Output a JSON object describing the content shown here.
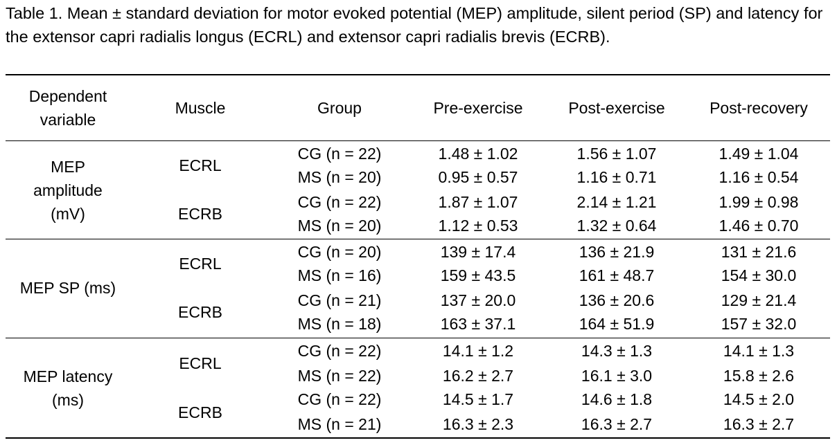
{
  "caption": "Table 1. Mean ± standard deviation for motor evoked potential (MEP) amplitude, silent period (SP) and latency for the extensor capri radialis longus (ECRL) and extensor capri radialis brevis (ECRB).",
  "headers": {
    "dependent_line1": "Dependent",
    "dependent_line2": "variable",
    "muscle": "Muscle",
    "group": "Group",
    "pre": "Pre-exercise",
    "post": "Post-exercise",
    "recovery": "Post-recovery"
  },
  "sections": [
    {
      "label_lines": [
        "MEP",
        "amplitude",
        "(mV)"
      ],
      "muscles": [
        {
          "name": "ECRL",
          "rows": [
            {
              "group": "CG (n = 22)",
              "pre": "1.48 ± 1.02",
              "post": "1.56 ± 1.07",
              "recovery": "1.49 ± 1.04"
            },
            {
              "group": "MS (n = 20)",
              "pre": "0.95 ± 0.57",
              "post": "1.16 ± 0.71",
              "recovery": "1.16 ± 0.54"
            }
          ]
        },
        {
          "name": "ECRB",
          "rows": [
            {
              "group": "CG (n = 22)",
              "pre": "1.87 ± 1.07",
              "post": "2.14 ± 1.21",
              "recovery": "1.99 ± 0.98"
            },
            {
              "group": "MS (n = 20)",
              "pre": "1.12 ± 0.53",
              "post": "1.32 ± 0.64",
              "recovery": "1.46 ± 0.70"
            }
          ]
        }
      ]
    },
    {
      "label_lines": [
        "MEP SP (ms)"
      ],
      "muscles": [
        {
          "name": "ECRL",
          "rows": [
            {
              "group": "CG (n = 20)",
              "pre": "139 ± 17.4",
              "post": "136 ± 21.9",
              "recovery": "131 ± 21.6"
            },
            {
              "group": "MS (n = 16)",
              "pre": "159 ± 43.5",
              "post": "161 ± 48.7",
              "recovery": "154 ± 30.0"
            }
          ]
        },
        {
          "name": "ECRB",
          "rows": [
            {
              "group": "CG (n = 21)",
              "pre": "137 ± 20.0",
              "post": "136 ± 20.6",
              "recovery": "129 ± 21.4"
            },
            {
              "group": "MS (n = 18)",
              "pre": "163 ± 37.1",
              "post": "164 ± 51.9",
              "recovery": "157 ± 32.0"
            }
          ]
        }
      ]
    },
    {
      "label_lines": [
        "MEP latency",
        "(ms)"
      ],
      "muscles": [
        {
          "name": "ECRL",
          "rows": [
            {
              "group": "CG (n = 22)",
              "pre": "14.1 ± 1.2",
              "post": "14.3 ± 1.3",
              "recovery": "14.1 ± 1.3"
            },
            {
              "group": "MS (n = 22)",
              "pre": "16.2 ± 2.7",
              "post": "16.1 ± 3.0",
              "recovery": "15.8 ± 2.6"
            }
          ]
        },
        {
          "name": "ECRB",
          "rows": [
            {
              "group": "CG (n = 22)",
              "pre": "14.5 ± 1.7",
              "post": "14.6 ± 1.8",
              "recovery": "14.5 ± 2.0"
            },
            {
              "group": "MS (n = 21)",
              "pre": "16.3 ± 2.3",
              "post": "16.3 ± 2.7",
              "recovery": "16.3 ± 2.7"
            }
          ]
        }
      ]
    }
  ]
}
